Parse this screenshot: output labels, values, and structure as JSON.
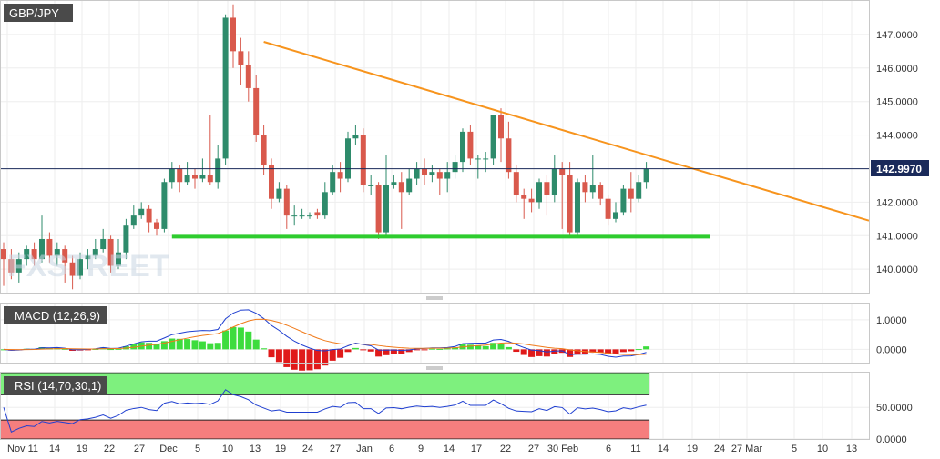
{
  "chart_data": [
    {
      "type": "candlestick",
      "title": "GBP/JPY",
      "y_ticks": [
        "147.0000",
        "146.0000",
        "145.0000",
        "144.0000",
        "142.0000",
        "141.0000",
        "140.0000"
      ],
      "last_price_label": "142.9970",
      "last_price": 142.997,
      "ylim": [
        139.3,
        148.0
      ],
      "candles": [
        [
          140.6,
          140.3,
          140.8,
          139.5
        ],
        [
          140.3,
          139.9,
          140.6,
          139.7
        ],
        [
          139.9,
          140.3,
          140.5,
          139.6
        ],
        [
          140.3,
          140.6,
          140.7,
          140.1
        ],
        [
          140.6,
          140.3,
          140.8,
          140.1
        ],
        [
          140.3,
          140.9,
          141.6,
          140.2
        ],
        [
          140.9,
          140.4,
          141.1,
          140.2
        ],
        [
          140.4,
          140.6,
          140.8,
          140.1
        ],
        [
          140.6,
          140.2,
          140.7,
          139.6
        ],
        [
          140.2,
          139.8,
          140.4,
          139.4
        ],
        [
          139.8,
          140.3,
          140.5,
          139.7
        ],
        [
          140.3,
          140.4,
          140.6,
          140.0
        ],
        [
          140.4,
          140.6,
          140.9,
          140.3
        ],
        [
          140.6,
          140.9,
          141.2,
          140.5
        ],
        [
          140.9,
          140.1,
          141.0,
          139.9
        ],
        [
          140.1,
          140.5,
          140.9,
          140.0
        ],
        [
          140.5,
          141.3,
          141.5,
          140.3
        ],
        [
          141.3,
          141.6,
          141.9,
          141.2
        ],
        [
          141.6,
          141.8,
          142.0,
          141.5
        ],
        [
          141.8,
          141.4,
          141.9,
          141.1
        ],
        [
          141.4,
          141.2,
          141.5,
          141.0
        ],
        [
          141.2,
          142.6,
          142.7,
          141.1
        ],
        [
          142.6,
          143.0,
          143.2,
          142.4
        ],
        [
          143.0,
          142.6,
          143.1,
          142.3
        ],
        [
          142.6,
          142.8,
          143.2,
          142.5
        ],
        [
          142.8,
          142.7,
          143.0,
          142.4
        ],
        [
          142.7,
          142.8,
          143.3,
          142.6
        ],
        [
          142.8,
          142.6,
          144.6,
          142.5
        ],
        [
          142.6,
          143.3,
          143.7,
          142.4
        ],
        [
          143.3,
          147.5,
          147.6,
          143.1
        ],
        [
          147.5,
          146.5,
          147.9,
          146.0
        ],
        [
          146.5,
          146.1,
          146.9,
          145.5
        ],
        [
          146.1,
          145.4,
          146.5,
          145.0
        ],
        [
          145.4,
          144.0,
          145.8,
          143.8
        ],
        [
          144.0,
          143.1,
          144.3,
          142.8
        ],
        [
          143.1,
          142.1,
          143.3,
          141.8
        ],
        [
          142.1,
          142.4,
          142.6,
          142.0
        ],
        [
          142.4,
          141.6,
          142.5,
          141.2
        ],
        [
          141.6,
          141.6,
          141.9,
          141.3
        ],
        [
          141.6,
          141.6,
          141.8,
          141.5
        ],
        [
          141.6,
          141.6,
          141.7,
          141.5
        ],
        [
          141.7,
          141.6,
          141.8,
          141.5
        ],
        [
          141.6,
          142.3,
          142.6,
          141.5
        ],
        [
          142.3,
          142.9,
          143.1,
          142.2
        ],
        [
          142.9,
          142.7,
          143.2,
          142.3
        ],
        [
          142.7,
          143.9,
          144.1,
          142.6
        ],
        [
          143.9,
          144.0,
          144.3,
          143.7
        ],
        [
          144.0,
          142.5,
          144.2,
          142.3
        ],
        [
          142.5,
          142.5,
          142.8,
          142.2
        ],
        [
          142.5,
          141.1,
          142.6,
          140.9
        ],
        [
          141.1,
          142.5,
          143.4,
          141.0
        ],
        [
          142.5,
          142.6,
          142.8,
          142.4
        ],
        [
          142.6,
          142.3,
          142.9,
          141.2
        ],
        [
          142.3,
          142.7,
          143.0,
          142.2
        ],
        [
          142.7,
          143.0,
          143.2,
          142.5
        ],
        [
          143.0,
          142.8,
          143.3,
          142.5
        ],
        [
          142.8,
          142.9,
          143.1,
          142.6
        ],
        [
          142.9,
          142.7,
          143.0,
          142.2
        ],
        [
          142.7,
          142.9,
          143.2,
          142.3
        ],
        [
          142.9,
          143.2,
          143.4,
          142.7
        ],
        [
          143.2,
          144.1,
          144.2,
          142.9
        ],
        [
          144.1,
          143.3,
          144.3,
          143.1
        ],
        [
          143.3,
          143.3,
          143.4,
          142.7
        ],
        [
          143.3,
          143.3,
          143.5,
          142.9
        ],
        [
          143.3,
          144.6,
          144.6,
          143.1
        ],
        [
          144.6,
          143.9,
          144.8,
          143.2
        ],
        [
          143.9,
          142.9,
          144.4,
          142.7
        ],
        [
          142.9,
          142.2,
          143.1,
          142.0
        ],
        [
          142.2,
          142.1,
          142.4,
          141.5
        ],
        [
          142.1,
          142.0,
          142.4,
          141.7
        ],
        [
          142.0,
          142.6,
          142.7,
          141.8
        ],
        [
          142.6,
          142.2,
          142.8,
          141.6
        ],
        [
          142.2,
          143.0,
          143.4,
          142.0
        ],
        [
          143.0,
          142.8,
          143.2,
          141.2
        ],
        [
          142.8,
          141.1,
          143.2,
          141.0
        ],
        [
          141.1,
          142.6,
          142.7,
          141.0
        ],
        [
          142.6,
          142.3,
          142.8,
          142.0
        ],
        [
          142.3,
          142.5,
          143.4,
          142.1
        ],
        [
          142.5,
          142.1,
          142.6,
          141.9
        ],
        [
          142.1,
          141.5,
          142.2,
          141.3
        ],
        [
          141.5,
          141.7,
          142.0,
          141.4
        ],
        [
          141.7,
          142.4,
          142.5,
          141.6
        ],
        [
          142.4,
          142.1,
          142.9,
          141.7
        ],
        [
          142.1,
          142.6,
          142.8,
          142.0
        ],
        [
          142.6,
          143.0,
          143.2,
          142.4
        ]
      ],
      "trendline_start": 146.78,
      "trendline_end": 141.45,
      "support_level": 140.97,
      "x_tick_labels": [
        "Nov 11",
        "14",
        "19",
        "22",
        "27",
        "Dec",
        "5",
        "10",
        "13",
        "19",
        "24",
        "27",
        "Jan",
        "6",
        "9",
        "14",
        "17",
        "22",
        "27",
        "30 Feb",
        "6",
        "11",
        "14",
        "19",
        "24",
        "27 Mar",
        "5",
        "10",
        "13"
      ]
    },
    {
      "type": "line",
      "title": "MACD (12,26,9)",
      "y_ticks": [
        "1.0000",
        "0.0000"
      ],
      "ylim": [
        -0.45,
        1.55
      ]
    },
    {
      "type": "line",
      "title": "RSI (14,70,30,1)",
      "y_ticks": [
        "50.0000",
        "0.0000"
      ],
      "ylim": [
        0,
        105
      ],
      "overbought": 70,
      "oversold": 30,
      "zone_colors": {
        "overbought": "#7ef07e",
        "oversold": "#f67e7e"
      }
    }
  ],
  "colors": {
    "bull": "#2e8b6b",
    "bear": "#d9594c",
    "trendline": "#f7941d",
    "support": "#2ecc2e",
    "macd_line": "#1f3fd0",
    "signal_line": "#f07a1a",
    "hist_pos": "#3ddc3d",
    "hist_neg": "#e01a1a",
    "label_bg": "#4a4a4a"
  }
}
